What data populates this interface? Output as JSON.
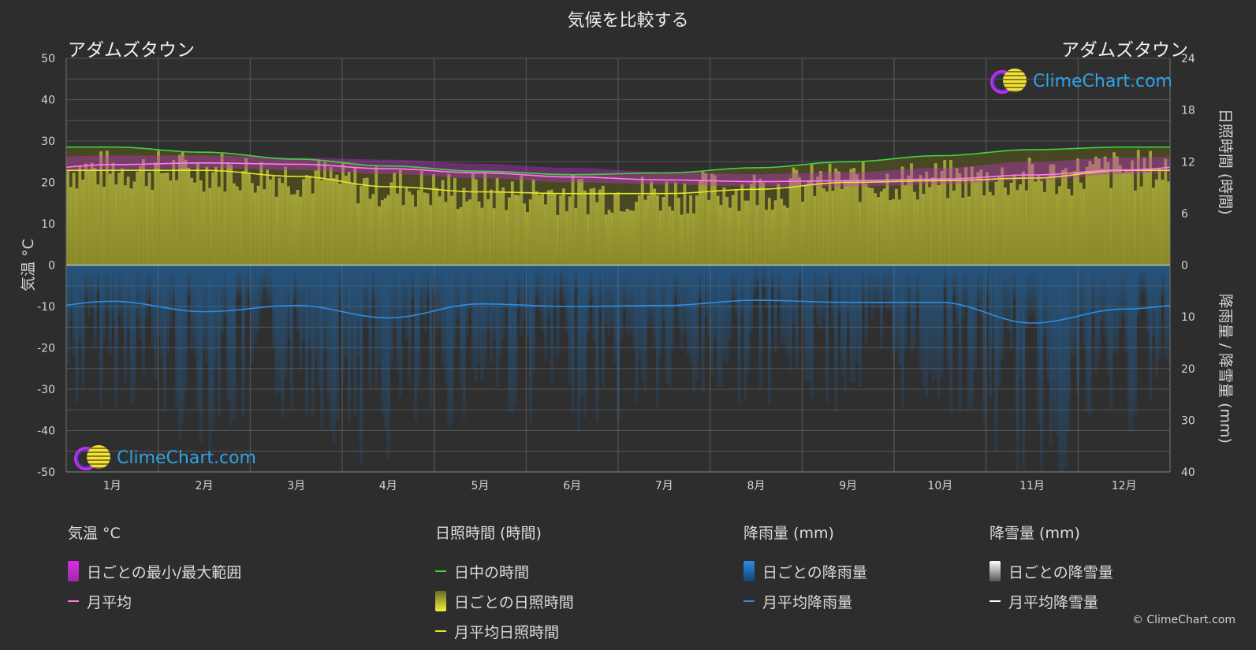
{
  "title": "気候を比較する",
  "city_left": "アダムズタウン",
  "city_right": "アダムズタウン",
  "logo_text": "ClimeChart.com",
  "copyright": "© ClimeChart.com",
  "axis_left_label": "気温 °C",
  "axis_right_top_label": "日照時間 (時間)",
  "axis_right_bottom_label": "降雨量 / 降雪量 (mm)",
  "legend": {
    "temperature": {
      "header": "気温 °C",
      "range": "日ごとの最小/最大範囲",
      "avg": "月平均"
    },
    "sunshine": {
      "header": "日照時間 (時間)",
      "daylight": "日中の時間",
      "daily": "日ごとの日照時間",
      "avg": "月平均日照時間"
    },
    "rain": {
      "header": "降雨量 (mm)",
      "daily": "日ごとの降雨量",
      "avg": "月平均降雨量"
    },
    "snow": {
      "header": "降雪量 (mm)",
      "daily": "日ごとの降雪量",
      "avg": "月平均降雪量"
    }
  },
  "colors": {
    "background": "#2d2d2d",
    "daylight": "#3fd43f",
    "sunshine_fill": "#9a9a2e",
    "sunshine_line": "#e6e62a",
    "temp_range": "#c52fd6",
    "temp_avg": "#ff7cf2",
    "rain": "#1f7fd0",
    "rain_line": "#2a8ee6",
    "snow_line": "#ffffff"
  },
  "chart_data": {
    "type": "line",
    "months": [
      "1月",
      "2月",
      "3月",
      "4月",
      "5月",
      "6月",
      "7月",
      "8月",
      "9月",
      "10月",
      "11月",
      "12月"
    ],
    "temp_axis": {
      "ylim": [
        -50,
        50
      ],
      "ticks": [
        50,
        40,
        30,
        20,
        10,
        0,
        -10,
        -20,
        -30,
        -40,
        -50
      ]
    },
    "sunshine_axis": {
      "ylim": [
        0,
        24
      ],
      "ticks": [
        24,
        18,
        12,
        6,
        0
      ]
    },
    "precip_axis": {
      "ylim": [
        0,
        40
      ],
      "ticks": [
        0,
        10,
        20,
        30,
        40
      ]
    },
    "series": [
      {
        "name": "日中の時間",
        "unit": "hours",
        "values": [
          13.7,
          13.1,
          12.3,
          11.5,
          10.9,
          10.5,
          10.7,
          11.3,
          12.0,
          12.7,
          13.4,
          13.7
        ]
      },
      {
        "name": "月平均日照時間",
        "unit": "hours",
        "values": [
          11.0,
          11.0,
          10.3,
          9.1,
          8.5,
          8.3,
          8.3,
          8.8,
          9.6,
          9.8,
          10.1,
          11.0
        ]
      },
      {
        "name": "月平均",
        "unit": "°C",
        "values": [
          24.3,
          24.7,
          24.4,
          23.3,
          22.3,
          21.3,
          20.6,
          20.2,
          20.4,
          20.8,
          21.8,
          23.0
        ]
      },
      {
        "name": "月平均降雨量",
        "unit": "mm",
        "values": [
          7.0,
          9.0,
          7.8,
          10.2,
          7.5,
          8.0,
          7.8,
          6.8,
          7.2,
          7.2,
          11.2,
          8.5
        ]
      }
    ],
    "temp_range": {
      "max": [
        26.5,
        26.5,
        26.0,
        25.5,
        24.5,
        23.5,
        22.5,
        22.0,
        22.5,
        23.5,
        25.0,
        26.0
      ],
      "min": [
        23.0,
        23.5,
        23.0,
        22.0,
        21.0,
        20.0,
        19.5,
        19.0,
        19.0,
        19.5,
        20.5,
        22.0
      ]
    }
  }
}
